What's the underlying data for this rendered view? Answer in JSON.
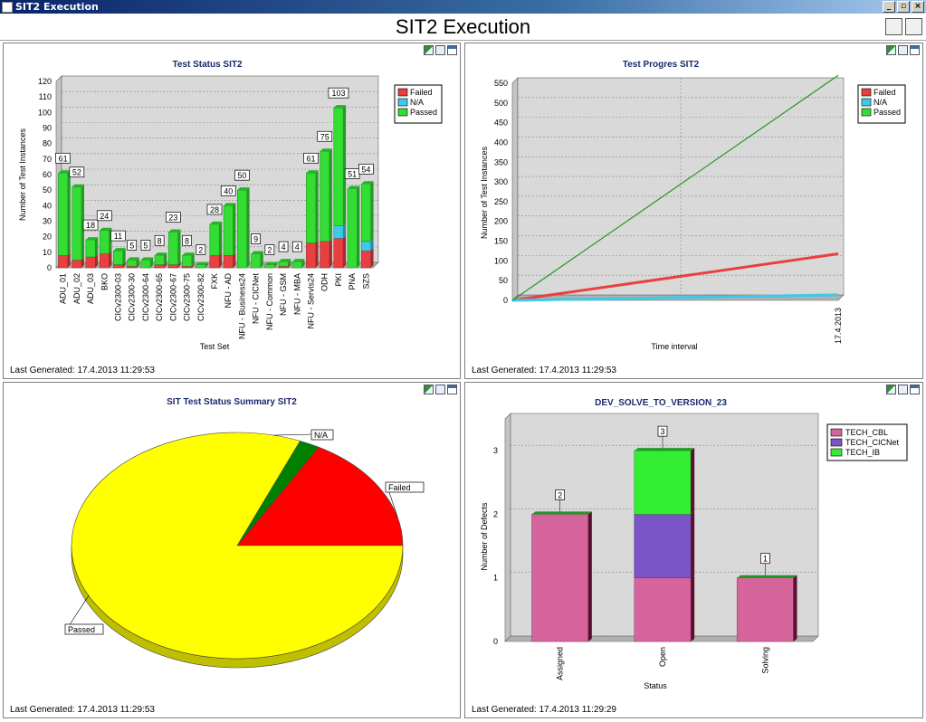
{
  "window": {
    "title": "SIT2 Execution"
  },
  "page": {
    "title": "SIT2 Execution"
  },
  "panels": {
    "status": {
      "title": "Test Status SIT2",
      "footer": "Last Generated: 17.4.2013 11:29:53"
    },
    "progress": {
      "title": "Test Progres SIT2",
      "footer": "Last Generated: 17.4.2013 11:29:53"
    },
    "summary": {
      "title": "SIT Test Status Summary SIT2",
      "footer": "Last Generated: 17.4.2013 11:29:53"
    },
    "defects": {
      "title": "DEV_SOLVE_TO_VERSION_23",
      "footer": "Last Generated: 17.4.2013 11:29:29"
    }
  },
  "colors": {
    "failed": "#e84040",
    "na": "#40c8e8",
    "passed": "#33dd33",
    "tech_cbl": "#d6649c",
    "tech_cicnet": "#7a55c8",
    "tech_ib": "#33ee33",
    "pie_passed": "#ffff00",
    "pie_failed": "#ff0000",
    "pie_na": "#008000"
  },
  "chart_data": [
    {
      "type": "bar",
      "title": "Test Status SIT2",
      "xlabel": "Test Set",
      "ylabel": "Number of Test Instances",
      "ylim": [
        0,
        120
      ],
      "yticks": [
        0,
        10,
        20,
        30,
        40,
        50,
        60,
        70,
        80,
        90,
        100,
        110,
        120
      ],
      "categories": [
        "ADU_01",
        "ADU_02",
        "ADU_03",
        "BKO",
        "CICv2300-03",
        "CICv2300-30",
        "CICv2300-64",
        "CICv2300-65",
        "CICv2300-67",
        "CICv2300-75",
        "CICv2300-82",
        "FXK",
        "NFU - AD",
        "NFU - Business24",
        "NFU - CICNet",
        "NFU - Common",
        "NFU - GSM",
        "NFU - MBA",
        "NFU - Servis24",
        "ODH",
        "PKI",
        "PNA",
        "SZS"
      ],
      "totals": [
        61,
        52,
        18,
        24,
        11,
        5,
        5,
        8,
        23,
        8,
        2,
        28,
        40,
        50,
        9,
        2,
        4,
        4,
        61,
        75,
        103,
        51,
        54
      ],
      "series": [
        {
          "name": "Failed",
          "values": [
            8,
            5,
            7,
            9,
            2,
            1,
            0,
            2,
            2,
            1,
            0,
            8,
            8,
            0,
            0,
            0,
            1,
            0,
            16,
            17,
            19,
            0,
            11
          ]
        },
        {
          "name": "N/A",
          "values": [
            0,
            0,
            0,
            0,
            0,
            0,
            0,
            0,
            0,
            0,
            0,
            0,
            0,
            0,
            0,
            0,
            0,
            0,
            0,
            0,
            8,
            0,
            6
          ]
        },
        {
          "name": "Passed",
          "values": [
            53,
            47,
            11,
            15,
            9,
            4,
            5,
            6,
            21,
            7,
            2,
            20,
            32,
            50,
            9,
            2,
            3,
            4,
            45,
            58,
            76,
            51,
            37
          ]
        }
      ],
      "legend": "top-right",
      "grid": true
    },
    {
      "type": "line",
      "title": "Test Progres SIT2",
      "xlabel": "Time interval",
      "ylabel": "Number of Test Instances",
      "ylim": [
        0,
        550
      ],
      "yticks": [
        0,
        50,
        100,
        150,
        200,
        250,
        300,
        350,
        400,
        450,
        500,
        550
      ],
      "x": [
        "",
        "17.4.2013"
      ],
      "series": [
        {
          "name": "Failed",
          "values": [
            0,
            118
          ]
        },
        {
          "name": "N/A",
          "values": [
            0,
            14
          ]
        },
        {
          "name": "Passed",
          "values": [
            0,
            570
          ]
        }
      ],
      "legend": "top-right",
      "grid": true
    },
    {
      "type": "pie",
      "title": "SIT Test Status Summary SIT2",
      "labels": [
        "Failed",
        "N/A",
        "Passed"
      ],
      "values": [
        118,
        14,
        570
      ]
    },
    {
      "type": "bar",
      "title": "DEV_SOLVE_TO_VERSION_23",
      "xlabel": "Status",
      "ylabel": "Number of Defects",
      "ylim": [
        0,
        3.5
      ],
      "yticks": [
        0,
        1,
        2,
        3
      ],
      "categories": [
        "Assigned",
        "Open",
        "Solving"
      ],
      "totals": [
        2,
        3,
        1
      ],
      "series": [
        {
          "name": "TECH_CBL",
          "values": [
            2,
            1,
            1
          ]
        },
        {
          "name": "TECH_CICNet",
          "values": [
            0,
            1,
            0
          ]
        },
        {
          "name": "TECH_IB",
          "values": [
            0,
            1,
            0
          ]
        }
      ],
      "legend": "top-right",
      "grid": true
    }
  ]
}
